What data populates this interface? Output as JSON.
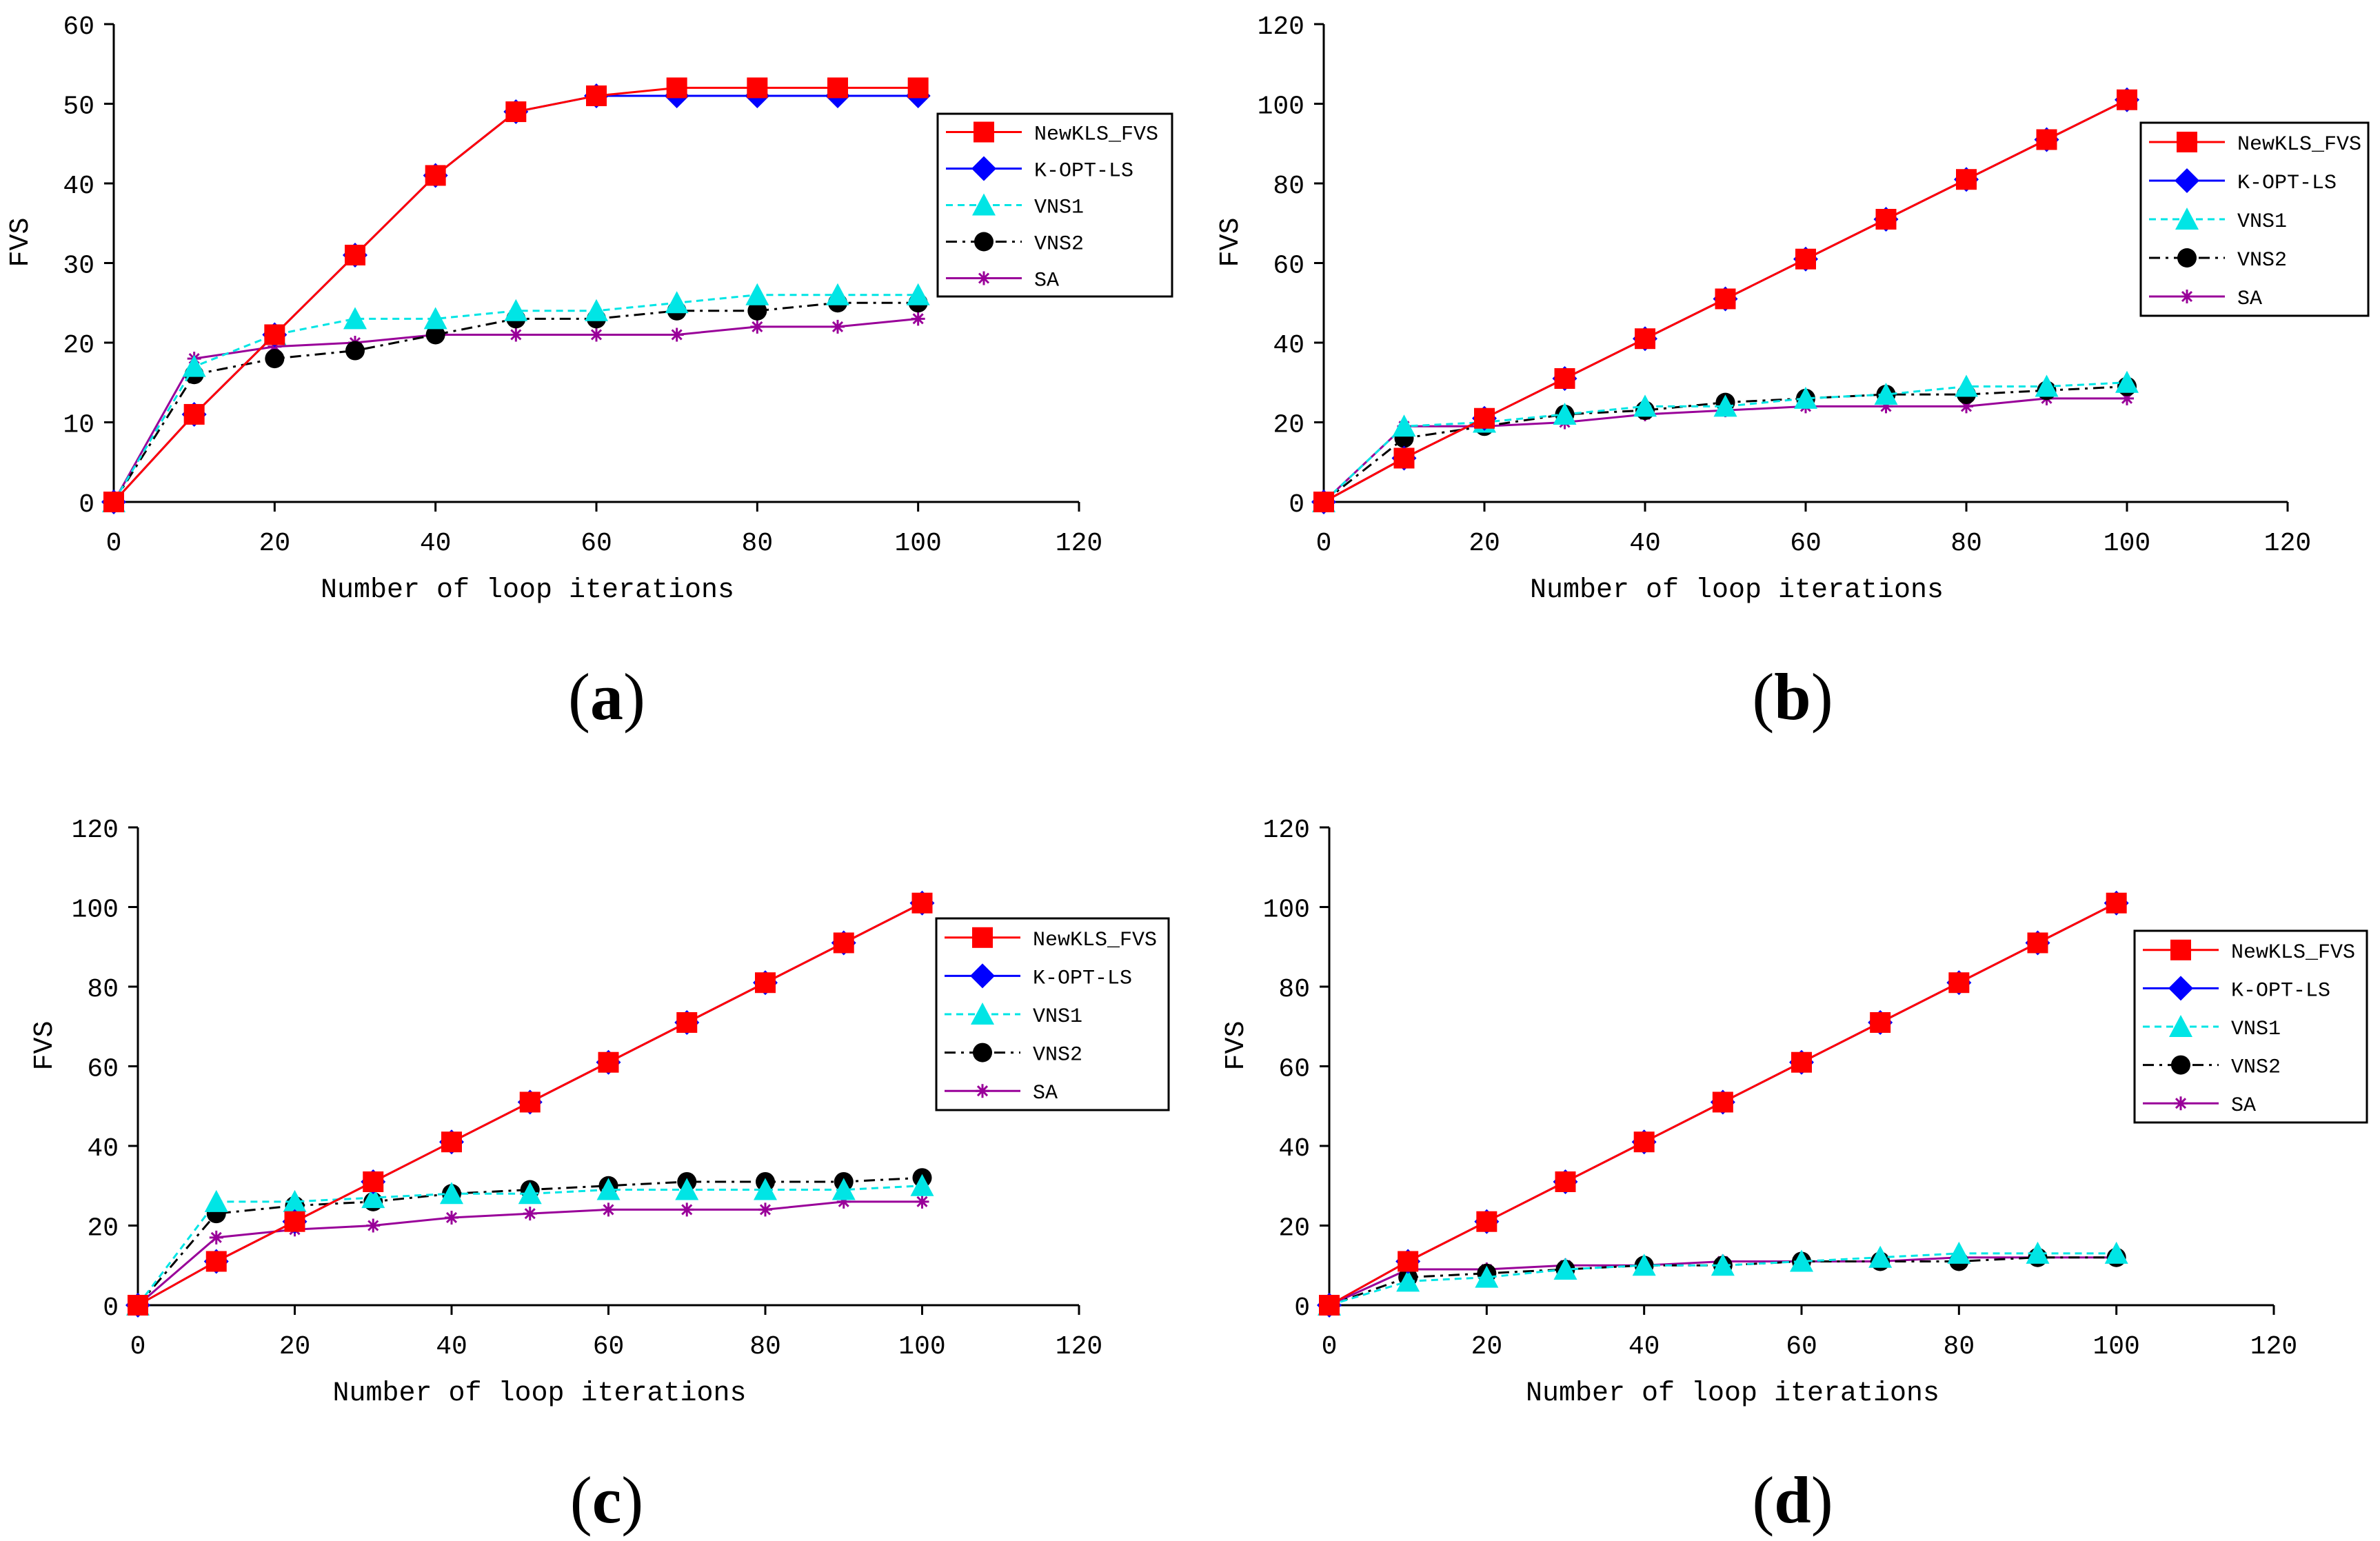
{
  "figure": {
    "captions": [
      "a",
      "b",
      "c",
      "d"
    ]
  },
  "colors": {
    "NewKLS_FVS": "#ff0000",
    "K-OPT-LS": "#0000ff",
    "VNS1": "#00e5e5",
    "VNS2": "#000000",
    "SA": "#990099"
  },
  "chart_data": [
    {
      "type": "line",
      "panel": "a",
      "title": "",
      "xlabel": "Number of loop iterations",
      "ylabel": "FVS",
      "xlim": [
        0,
        120
      ],
      "ylim": [
        0,
        60
      ],
      "xticks": [
        0,
        20,
        40,
        60,
        80,
        100,
        120
      ],
      "yticks": [
        0,
        10,
        20,
        30,
        40,
        50,
        60
      ],
      "legend_position": "right",
      "x": [
        0,
        10,
        20,
        30,
        40,
        50,
        60,
        70,
        80,
        90,
        100
      ],
      "series": [
        {
          "name": "NewKLS_FVS",
          "marker": "square",
          "dash": "solid",
          "values": [
            0,
            11,
            21,
            31,
            41,
            49,
            51,
            52,
            52,
            52,
            52
          ]
        },
        {
          "name": "K-OPT-LS",
          "marker": "diamond",
          "dash": "solid",
          "values": [
            0,
            11,
            21,
            31,
            41,
            49,
            51,
            51,
            51,
            51,
            51
          ]
        },
        {
          "name": "VNS1",
          "marker": "triangle",
          "dash": "dashed",
          "values": [
            0,
            17,
            21,
            23,
            23,
            24,
            24,
            25,
            26,
            26,
            26
          ]
        },
        {
          "name": "VNS2",
          "marker": "circle",
          "dash": "dashdot",
          "values": [
            0,
            16,
            18,
            19,
            21,
            23,
            23,
            24,
            24,
            25,
            25
          ]
        },
        {
          "name": "SA",
          "marker": "star",
          "dash": "solid",
          "values": [
            0,
            18,
            19.5,
            20,
            21,
            21,
            21,
            21,
            22,
            22,
            23
          ]
        }
      ]
    },
    {
      "type": "line",
      "panel": "b",
      "title": "",
      "xlabel": "Number of loop iterations",
      "ylabel": "FVS",
      "xlim": [
        0,
        120
      ],
      "ylim": [
        0,
        120
      ],
      "xticks": [
        0,
        20,
        40,
        60,
        80,
        100,
        120
      ],
      "yticks": [
        0,
        20,
        40,
        60,
        80,
        100,
        120
      ],
      "legend_position": "right",
      "x": [
        0,
        10,
        20,
        30,
        40,
        50,
        60,
        70,
        80,
        90,
        100
      ],
      "series": [
        {
          "name": "NewKLS_FVS",
          "marker": "square",
          "dash": "solid",
          "values": [
            0,
            11,
            21,
            31,
            41,
            51,
            61,
            71,
            81,
            91,
            101
          ]
        },
        {
          "name": "K-OPT-LS",
          "marker": "diamond",
          "dash": "solid",
          "values": [
            0,
            11,
            21,
            31,
            41,
            51,
            61,
            71,
            81,
            91,
            101
          ]
        },
        {
          "name": "VNS1",
          "marker": "triangle",
          "dash": "dashed",
          "values": [
            0,
            19,
            20,
            22,
            24,
            24,
            26,
            27,
            29,
            29,
            30
          ]
        },
        {
          "name": "VNS2",
          "marker": "circle",
          "dash": "dashdot",
          "values": [
            0,
            16,
            19,
            22,
            23,
            25,
            26,
            27,
            27,
            28,
            29
          ]
        },
        {
          "name": "SA",
          "marker": "star",
          "dash": "solid",
          "values": [
            0,
            19,
            19,
            20,
            22,
            23,
            24,
            24,
            24,
            26,
            26
          ]
        }
      ]
    },
    {
      "type": "line",
      "panel": "c",
      "title": "",
      "xlabel": "Number of loop iterations",
      "ylabel": "FVS",
      "xlim": [
        0,
        120
      ],
      "ylim": [
        0,
        120
      ],
      "xticks": [
        0,
        20,
        40,
        60,
        80,
        100,
        120
      ],
      "yticks": [
        0,
        20,
        40,
        60,
        80,
        100,
        120
      ],
      "legend_position": "right",
      "x": [
        0,
        10,
        20,
        30,
        40,
        50,
        60,
        70,
        80,
        90,
        100
      ],
      "series": [
        {
          "name": "NewKLS_FVS",
          "marker": "square",
          "dash": "solid",
          "values": [
            0,
            11,
            21,
            31,
            41,
            51,
            61,
            71,
            81,
            91,
            101
          ]
        },
        {
          "name": "K-OPT-LS",
          "marker": "diamond",
          "dash": "solid",
          "values": [
            0,
            11,
            21,
            31,
            41,
            51,
            61,
            71,
            81,
            91,
            101
          ]
        },
        {
          "name": "VNS1",
          "marker": "triangle",
          "dash": "dashed",
          "values": [
            0,
            26,
            26,
            27,
            28,
            28,
            29,
            29,
            29,
            29,
            30
          ]
        },
        {
          "name": "VNS2",
          "marker": "circle",
          "dash": "dashdot",
          "values": [
            0,
            23,
            25,
            26,
            28,
            29,
            30,
            31,
            31,
            31,
            32
          ]
        },
        {
          "name": "SA",
          "marker": "star",
          "dash": "solid",
          "values": [
            0,
            17,
            19,
            20,
            22,
            23,
            24,
            24,
            24,
            26,
            26
          ]
        }
      ]
    },
    {
      "type": "line",
      "panel": "d",
      "title": "",
      "xlabel": "Number of loop iterations",
      "ylabel": "FVS",
      "xlim": [
        0,
        120
      ],
      "ylim": [
        0,
        120
      ],
      "xticks": [
        0,
        20,
        40,
        60,
        80,
        100,
        120
      ],
      "yticks": [
        0,
        20,
        40,
        60,
        80,
        100,
        120
      ],
      "legend_position": "right",
      "x": [
        0,
        10,
        20,
        30,
        40,
        50,
        60,
        70,
        80,
        90,
        100
      ],
      "series": [
        {
          "name": "NewKLS_FVS",
          "marker": "square",
          "dash": "solid",
          "values": [
            0,
            11,
            21,
            31,
            41,
            51,
            61,
            71,
            81,
            91,
            101
          ]
        },
        {
          "name": "K-OPT-LS",
          "marker": "diamond",
          "dash": "solid",
          "values": [
            0,
            11,
            21,
            31,
            41,
            51,
            61,
            71,
            81,
            91,
            101
          ]
        },
        {
          "name": "VNS1",
          "marker": "triangle",
          "dash": "dashed",
          "values": [
            0,
            6,
            7,
            9,
            10,
            10,
            11,
            12,
            13,
            13,
            13
          ]
        },
        {
          "name": "VNS2",
          "marker": "circle",
          "dash": "dashdot",
          "values": [
            0,
            7,
            8,
            9,
            10,
            10,
            11,
            11,
            11,
            12,
            12
          ]
        },
        {
          "name": "SA",
          "marker": "star",
          "dash": "solid",
          "values": [
            0,
            9,
            9,
            10,
            10,
            11,
            11,
            11,
            12,
            12,
            12
          ]
        }
      ]
    }
  ]
}
